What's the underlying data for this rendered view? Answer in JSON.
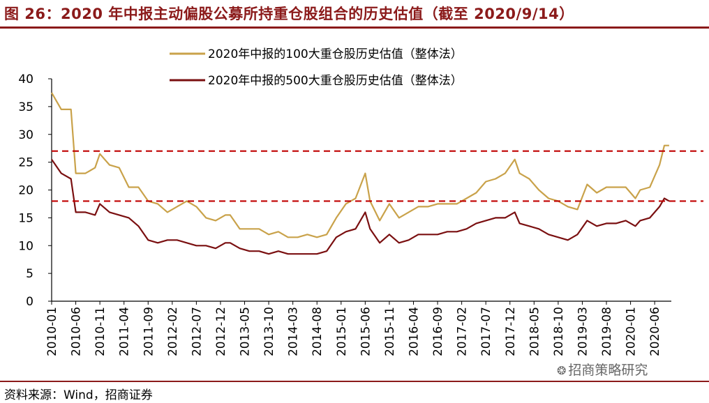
{
  "figure": {
    "title": "图 26：2020 年中报主动偏股公募所持重仓股组合的历史估值（截至 2020/9/14）",
    "source": "资料来源：Wind，招商证券",
    "watermark": "招商策略研究"
  },
  "chart_data": {
    "type": "line",
    "title": "",
    "xlabel": "",
    "ylabel": "",
    "ylim": [
      0,
      40
    ],
    "yticks": [
      0,
      5,
      10,
      15,
      20,
      25,
      30,
      35,
      40
    ],
    "xticks": [
      "2010-01",
      "2010-06",
      "2010-11",
      "2011-04",
      "2011-09",
      "2012-02",
      "2012-07",
      "2012-12",
      "2013-05",
      "2013-10",
      "2014-03",
      "2014-08",
      "2015-01",
      "2015-06",
      "2015-11",
      "2016-04",
      "2016-09",
      "2017-02",
      "2017-07",
      "2017-12",
      "2018-05",
      "2018-10",
      "2019-03",
      "2019-08",
      "2020-01",
      "2020-06"
    ],
    "grid": false,
    "legend_position": "top-center",
    "series": [
      {
        "name": "2020年中报的100大重仓股历史估值（整体法）",
        "color": "#c9a24a",
        "x": [
          "2010-01",
          "2010-03",
          "2010-05",
          "2010-06",
          "2010-08",
          "2010-10",
          "2010-11",
          "2011-01",
          "2011-03",
          "2011-05",
          "2011-07",
          "2011-09",
          "2011-11",
          "2012-01",
          "2012-03",
          "2012-05",
          "2012-07",
          "2012-09",
          "2012-11",
          "2013-01",
          "2013-02",
          "2013-04",
          "2013-06",
          "2013-08",
          "2013-10",
          "2013-12",
          "2014-02",
          "2014-04",
          "2014-06",
          "2014-08",
          "2014-10",
          "2014-12",
          "2015-02",
          "2015-04",
          "2015-06",
          "2015-07",
          "2015-09",
          "2015-11",
          "2016-01",
          "2016-03",
          "2016-05",
          "2016-07",
          "2016-09",
          "2016-11",
          "2017-01",
          "2017-03",
          "2017-05",
          "2017-07",
          "2017-09",
          "2017-11",
          "2018-01",
          "2018-02",
          "2018-04",
          "2018-06",
          "2018-08",
          "2018-10",
          "2018-12",
          "2019-02",
          "2019-04",
          "2019-06",
          "2019-08",
          "2019-10",
          "2019-12",
          "2020-02",
          "2020-03",
          "2020-05",
          "2020-07",
          "2020-08",
          "2020-09"
        ],
        "values": [
          37.5,
          34.5,
          34.5,
          23,
          23,
          24,
          26.5,
          24.5,
          24,
          20.5,
          20.5,
          18,
          17.5,
          16,
          17,
          18,
          17,
          15,
          14.5,
          15.5,
          15.5,
          13,
          13,
          13,
          12,
          12.5,
          11.5,
          11.5,
          12,
          11.5,
          12,
          15,
          17.5,
          18.5,
          23,
          18,
          14.5,
          17.5,
          15,
          16,
          17,
          17,
          17.5,
          17.5,
          17.5,
          18.5,
          19.5,
          21.5,
          22,
          23,
          25.5,
          23,
          22,
          20,
          18.5,
          18,
          17,
          16.5,
          21,
          19.5,
          20.5,
          20.5,
          20.5,
          18.5,
          20,
          20.5,
          24.5,
          28,
          28
        ]
      },
      {
        "name": "2020年中报的500大重仓股历史估值（整体法）",
        "color": "#7a0f10",
        "x": [
          "2010-01",
          "2010-03",
          "2010-05",
          "2010-06",
          "2010-08",
          "2010-10",
          "2010-11",
          "2011-01",
          "2011-03",
          "2011-05",
          "2011-07",
          "2011-09",
          "2011-11",
          "2012-01",
          "2012-03",
          "2012-05",
          "2012-07",
          "2012-09",
          "2012-11",
          "2013-01",
          "2013-02",
          "2013-04",
          "2013-06",
          "2013-08",
          "2013-10",
          "2013-12",
          "2014-02",
          "2014-04",
          "2014-06",
          "2014-08",
          "2014-10",
          "2014-12",
          "2015-02",
          "2015-04",
          "2015-06",
          "2015-07",
          "2015-09",
          "2015-11",
          "2016-01",
          "2016-03",
          "2016-05",
          "2016-07",
          "2016-09",
          "2016-11",
          "2017-01",
          "2017-03",
          "2017-05",
          "2017-07",
          "2017-09",
          "2017-11",
          "2018-01",
          "2018-02",
          "2018-04",
          "2018-06",
          "2018-08",
          "2018-10",
          "2018-12",
          "2019-02",
          "2019-04",
          "2019-06",
          "2019-08",
          "2019-10",
          "2019-12",
          "2020-02",
          "2020-03",
          "2020-05",
          "2020-07",
          "2020-08",
          "2020-09"
        ],
        "values": [
          25.5,
          23,
          22,
          16,
          16,
          15.5,
          17.5,
          16,
          15.5,
          15,
          13.5,
          11,
          10.5,
          11,
          11,
          10.5,
          10,
          10,
          9.5,
          10.5,
          10.5,
          9.5,
          9,
          9,
          8.5,
          9,
          8.5,
          8.5,
          8.5,
          8.5,
          9,
          11.5,
          12.5,
          13,
          16,
          13,
          10.5,
          12,
          10.5,
          11,
          12,
          12,
          12,
          12.5,
          12.5,
          13,
          14,
          14.5,
          15,
          15,
          16,
          14,
          13.5,
          13,
          12,
          11.5,
          11,
          12,
          14.5,
          13.5,
          14,
          14,
          14.5,
          13.5,
          14.5,
          15,
          17,
          18.5,
          18
        ]
      }
    ],
    "reference_lines": [
      {
        "y": 27,
        "color": "#c00000",
        "style": "dashed"
      },
      {
        "y": 18,
        "color": "#c00000",
        "style": "dashed"
      }
    ]
  }
}
